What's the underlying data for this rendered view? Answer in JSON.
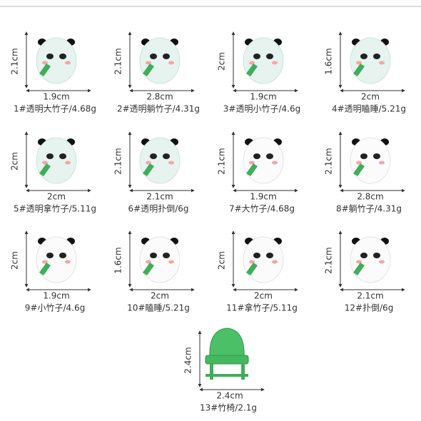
{
  "items": [
    {
      "height": "2.1cm",
      "width": "1.9cm",
      "caption": "1#透明大竹子/4.68g"
    },
    {
      "height": "2.1cm",
      "width": "2.8cm",
      "caption": "2#透明躺竹子/4.31g"
    },
    {
      "height": "2cm",
      "width": "1.9cm",
      "caption": "3#透明小竹子/4.6g"
    },
    {
      "height": "1.6cm",
      "width": "2cm",
      "caption": "4#透明瞌睡/5.21g"
    },
    {
      "height": "2cm",
      "width": "2cm",
      "caption": "5#透明拿竹子/5.11g"
    },
    {
      "height": "2.1cm",
      "width": "2.1cm",
      "caption": "6#透明扑倒/6g"
    },
    {
      "height": "2.1cm",
      "width": "1.9cm",
      "caption": "7#大竹子/4.68g"
    },
    {
      "height": "2.1cm",
      "width": "2.8cm",
      "caption": "8#躺竹子/4.31g"
    },
    {
      "height": "2cm",
      "width": "1.9cm",
      "caption": "9#小竹子/4.6g"
    },
    {
      "height": "1.6cm",
      "width": "2cm",
      "caption": "10#瞌睡/5.21g"
    },
    {
      "height": "2cm",
      "width": "2cm",
      "caption": "11#拿竹子/5.11g"
    },
    {
      "height": "2.1cm",
      "width": "2.1cm",
      "caption": "12#扑倒/6g"
    },
    {
      "height": "2.4cm",
      "width": "2.4cm",
      "caption": "13#竹椅/2.1g"
    }
  ]
}
